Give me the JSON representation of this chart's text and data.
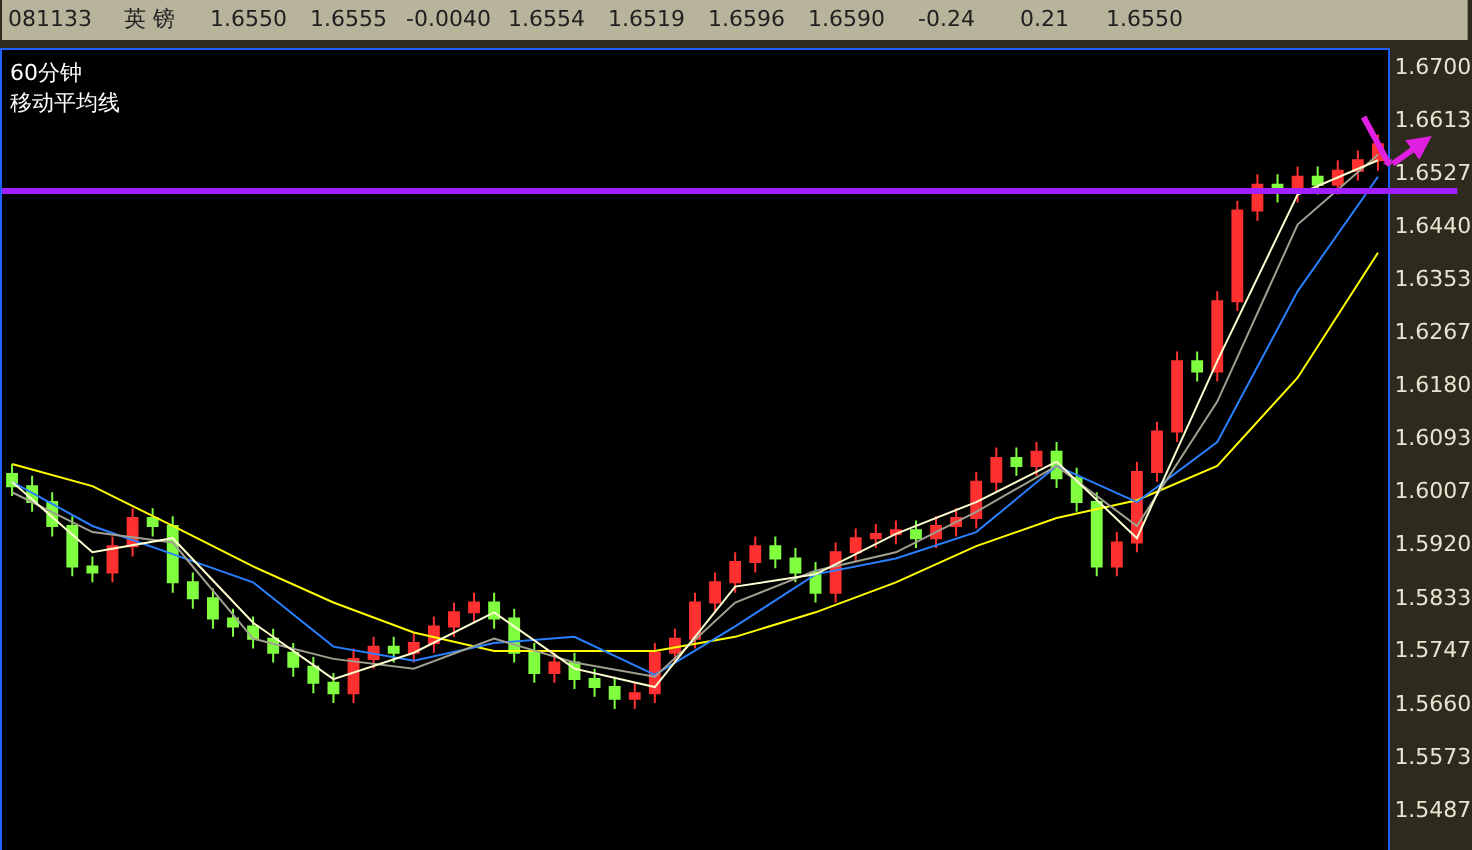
{
  "chart_data": {
    "type": "candlestick",
    "title": "60分钟",
    "subtitle": "移动平均线",
    "annotations": [
      "081133",
      "英 镑",
      "1.6550",
      "1.6555",
      "-0.0040",
      "1.6554",
      "1.6519",
      "1.6596",
      "1.6590",
      "-0.24",
      "0.21",
      "1.6550"
    ],
    "categories": [
      null,
      null,
      null,
      null,
      null,
      null,
      null,
      null,
      null,
      null,
      null,
      null,
      null,
      null,
      null,
      null,
      null,
      null,
      null,
      null,
      null,
      null,
      null,
      null,
      null,
      null,
      null,
      null,
      null,
      null,
      null,
      null,
      null,
      null,
      null,
      null,
      null,
      null,
      null,
      null,
      null,
      null,
      null,
      null,
      null,
      null,
      null,
      null,
      null,
      null,
      null,
      null,
      null,
      null,
      null,
      null,
      null,
      null,
      null,
      null,
      null,
      null,
      null,
      null,
      null,
      null,
      null,
      null,
      null
    ],
    "ohlc": [
      [
        1.6034,
        1.605,
        1.5998,
        1.6014
      ],
      [
        1.6014,
        1.6031,
        1.5972,
        1.5988
      ],
      [
        1.5988,
        1.6004,
        1.5932,
        1.5949
      ],
      [
        1.5949,
        1.5965,
        1.5867,
        1.5883
      ],
      [
        1.5883,
        1.5899,
        1.5857,
        1.5873
      ],
      [
        1.5873,
        1.5932,
        1.5857,
        1.5916
      ],
      [
        1.5916,
        1.5978,
        1.5899,
        1.5962
      ],
      [
        1.5962,
        1.5978,
        1.5932,
        1.5949
      ],
      [
        1.5949,
        1.5965,
        1.584,
        1.5857
      ],
      [
        1.5857,
        1.5873,
        1.5814,
        1.5831
      ],
      [
        1.5831,
        1.5847,
        1.5781,
        1.5798
      ],
      [
        1.5798,
        1.5814,
        1.5768,
        1.5785
      ],
      [
        1.5785,
        1.5801,
        1.5749,
        1.5765
      ],
      [
        1.5765,
        1.5781,
        1.5726,
        1.5742
      ],
      [
        1.5742,
        1.5758,
        1.5703,
        1.5719
      ],
      [
        1.5719,
        1.5735,
        1.5676,
        1.5693
      ],
      [
        1.5693,
        1.5709,
        1.566,
        1.5676
      ],
      [
        1.5676,
        1.5749,
        1.566,
        1.5732
      ],
      [
        1.5732,
        1.5768,
        1.5716,
        1.5752
      ],
      [
        1.5752,
        1.5768,
        1.5726,
        1.5742
      ],
      [
        1.5742,
        1.5775,
        1.5726,
        1.5758
      ],
      [
        1.5758,
        1.5801,
        1.5742,
        1.5785
      ],
      [
        1.5785,
        1.5824,
        1.5768,
        1.5808
      ],
      [
        1.5808,
        1.584,
        1.5791,
        1.5824
      ],
      [
        1.5824,
        1.584,
        1.5781,
        1.5798
      ],
      [
        1.5798,
        1.5814,
        1.5726,
        1.5742
      ],
      [
        1.5742,
        1.5758,
        1.5693,
        1.5709
      ],
      [
        1.5709,
        1.5742,
        1.5693,
        1.5726
      ],
      [
        1.5726,
        1.5742,
        1.5683,
        1.5699
      ],
      [
        1.5699,
        1.5716,
        1.567,
        1.5686
      ],
      [
        1.5686,
        1.5703,
        1.565,
        1.5667
      ],
      [
        1.5667,
        1.5693,
        1.565,
        1.5676
      ],
      [
        1.5676,
        1.5758,
        1.566,
        1.5742
      ],
      [
        1.5742,
        1.5781,
        1.5726,
        1.5765
      ],
      [
        1.5765,
        1.584,
        1.5749,
        1.5824
      ],
      [
        1.5824,
        1.5873,
        1.5808,
        1.5857
      ],
      [
        1.5857,
        1.5906,
        1.584,
        1.589
      ],
      [
        1.589,
        1.5932,
        1.5873,
        1.5916
      ],
      [
        1.5916,
        1.5932,
        1.588,
        1.5896
      ],
      [
        1.5896,
        1.5913,
        1.5857,
        1.5873
      ],
      [
        1.5873,
        1.589,
        1.5824,
        1.584
      ],
      [
        1.584,
        1.5922,
        1.5824,
        1.5906
      ],
      [
        1.5906,
        1.5945,
        1.589,
        1.5929
      ],
      [
        1.5929,
        1.5952,
        1.5913,
        1.5936
      ],
      [
        1.5936,
        1.5958,
        1.5919,
        1.5942
      ],
      [
        1.5942,
        1.5958,
        1.5913,
        1.5929
      ],
      [
        1.5929,
        1.5965,
        1.5913,
        1.5949
      ],
      [
        1.5949,
        1.5978,
        1.5932,
        1.5962
      ],
      [
        1.5962,
        1.6037,
        1.5945,
        1.6021
      ],
      [
        1.6021,
        1.6077,
        1.6004,
        1.606
      ],
      [
        1.606,
        1.6077,
        1.6031,
        1.6047
      ],
      [
        1.6047,
        1.6086,
        1.6031,
        1.607
      ],
      [
        1.607,
        1.6086,
        1.6011,
        1.6027
      ],
      [
        1.6027,
        1.6044,
        1.5972,
        1.5988
      ],
      [
        1.5988,
        1.6004,
        1.5867,
        1.5883
      ],
      [
        1.5883,
        1.5939,
        1.5867,
        1.5922
      ],
      [
        1.5922,
        1.6054,
        1.5906,
        1.6037
      ],
      [
        1.6037,
        1.6119,
        1.6021,
        1.6103
      ],
      [
        1.6103,
        1.6234,
        1.6086,
        1.6218
      ],
      [
        1.6218,
        1.6234,
        1.6185,
        1.6201
      ],
      [
        1.6201,
        1.6332,
        1.6185,
        1.6316
      ],
      [
        1.6316,
        1.648,
        1.63,
        1.6464
      ],
      [
        1.6464,
        1.6523,
        1.6447,
        1.6506
      ],
      [
        1.6506,
        1.6523,
        1.6477,
        1.6493
      ],
      [
        1.6493,
        1.6536,
        1.6477,
        1.6519
      ],
      [
        1.6519,
        1.6536,
        1.649,
        1.6506
      ],
      [
        1.6506,
        1.6546,
        1.649,
        1.6529
      ],
      [
        1.6529,
        1.6562,
        1.6513,
        1.6546
      ],
      [
        1.6546,
        1.6588,
        1.6529,
        1.6572
      ]
    ],
    "colors": [
      "#80ff40",
      "#80ff40",
      "#80ff40",
      "#80ff40",
      "#80ff40",
      "#ff3030",
      "#ff3030",
      "#80ff40",
      "#80ff40",
      "#80ff40",
      "#80ff40",
      "#80ff40",
      "#80ff40",
      "#80ff40",
      "#80ff40",
      "#80ff40",
      "#80ff40",
      "#ff3030",
      "#ff3030",
      "#80ff40",
      "#ff3030",
      "#ff3030",
      "#ff3030",
      "#ff3030",
      "#80ff40",
      "#80ff40",
      "#80ff40",
      "#ff3030",
      "#80ff40",
      "#80ff40",
      "#80ff40",
      "#ff3030",
      "#ff3030",
      "#ff3030",
      "#ff3030",
      "#ff3030",
      "#ff3030",
      "#ff3030",
      "#80ff40",
      "#80ff40",
      "#80ff40",
      "#ff3030",
      "#ff3030",
      "#ff3030",
      "#ff3030",
      "#80ff40",
      "#ff3030",
      "#ff3030",
      "#ff3030",
      "#ff3030",
      "#80ff40",
      "#ff3030",
      "#80ff40",
      "#80ff40",
      "#80ff40",
      "#ff3030",
      "#ff3030",
      "#ff3030",
      "#ff3030",
      "#80ff40",
      "#ff3030",
      "#ff3030",
      "#ff3030",
      "#80ff40",
      "#ff3030",
      "#80ff40",
      "#ff3030",
      "#ff3030",
      "#ff3030"
    ],
    "series": [
      {
        "type": "line",
        "color": "#ffff00",
        "values": [
          1.605,
          null,
          null,
          null,
          1.6014,
          null,
          null,
          null,
          1.5949,
          null,
          null,
          null,
          1.5883,
          null,
          null,
          null,
          1.5824,
          null,
          null,
          null,
          1.5775,
          null,
          null,
          null,
          1.5745,
          null,
          null,
          null,
          1.5745,
          null,
          null,
          null,
          1.5745,
          null,
          null,
          null,
          1.5768,
          null,
          null,
          null,
          1.5808,
          null,
          null,
          null,
          1.5857,
          null,
          null,
          null,
          1.5916,
          null,
          null,
          null,
          1.5962,
          null,
          null,
          null,
          1.5991,
          null,
          null,
          null,
          1.6047,
          null,
          null,
          null,
          1.6191,
          null,
          null,
          null,
          1.6395
        ]
      },
      {
        "type": "line",
        "color": "#2a7fff",
        "values": [
          1.6021,
          null,
          null,
          null,
          1.5949,
          null,
          null,
          null,
          1.5903,
          null,
          null,
          null,
          1.5857,
          null,
          null,
          null,
          1.5752,
          null,
          null,
          null,
          1.5729,
          null,
          null,
          null,
          1.5758,
          null,
          null,
          null,
          1.5768,
          null,
          null,
          null,
          1.5706,
          null,
          null,
          null,
          1.5785,
          null,
          null,
          null,
          1.587,
          null,
          null,
          null,
          1.5896,
          null,
          null,
          null,
          1.5939,
          null,
          null,
          null,
          1.6047,
          null,
          null,
          null,
          1.5988,
          null,
          null,
          null,
          1.6086,
          null,
          null,
          null,
          1.6332,
          null,
          null,
          null,
          1.6519
        ]
      },
      {
        "type": "line",
        "color": "#a0a090",
        "values": [
          1.6004,
          null,
          null,
          null,
          1.5939,
          null,
          null,
          null,
          1.5922,
          null,
          null,
          null,
          1.5765,
          null,
          null,
          null,
          1.5732,
          null,
          null,
          null,
          1.5716,
          null,
          null,
          null,
          1.5765,
          null,
          null,
          null,
          1.5726,
          null,
          null,
          null,
          1.5703,
          null,
          null,
          null,
          1.5824,
          null,
          null,
          null,
          1.5876,
          null,
          null,
          null,
          1.5906,
          null,
          null,
          null,
          1.5972,
          null,
          null,
          null,
          1.6047,
          null,
          null,
          null,
          1.5949,
          null,
          null,
          null,
          1.6152,
          null,
          null,
          null,
          1.6441,
          null,
          null,
          null,
          1.6555
        ]
      },
      {
        "type": "line",
        "color": "#ffffd0",
        "values": [
          1.6021,
          null,
          null,
          null,
          1.5906,
          null,
          null,
          null,
          1.5929,
          null,
          null,
          null,
          1.5791,
          null,
          null,
          null,
          1.5699,
          null,
          null,
          null,
          1.5742,
          null,
          null,
          null,
          1.5808,
          null,
          null,
          null,
          1.5716,
          null,
          null,
          null,
          1.5686,
          null,
          null,
          null,
          1.585,
          null,
          null,
          null,
          1.587,
          null,
          null,
          null,
          1.5936,
          null,
          null,
          null,
          1.5988,
          null,
          null,
          null,
          1.6054,
          null,
          null,
          null,
          1.5929,
          null,
          null,
          null,
          1.6218,
          null,
          null,
          null,
          1.649,
          null,
          null,
          null,
          1.6546
        ]
      }
    ],
    "ylim": [
      1.542,
      1.6726
    ],
    "yticks": [
      {
        "value": 1.67,
        "label": "1.6700"
      },
      {
        "value": 1.6613,
        "label": "1.6613"
      },
      {
        "value": 1.6527,
        "label": "1.6527"
      },
      {
        "value": 1.644,
        "label": "1.6440"
      },
      {
        "value": 1.6353,
        "label": "1.6353"
      },
      {
        "value": 1.6267,
        "label": "1.6267"
      },
      {
        "value": 1.618,
        "label": "1.6180"
      },
      {
        "value": 1.6093,
        "label": "1.6093"
      },
      {
        "value": 1.6007,
        "label": "1.6007"
      },
      {
        "value": 1.592,
        "label": "1.5920"
      },
      {
        "value": 1.5833,
        "label": "1.5833"
      },
      {
        "value": 1.5747,
        "label": "1.5747"
      },
      {
        "value": 1.566,
        "label": "1.5660"
      },
      {
        "value": 1.5573,
        "label": "1.5573"
      },
      {
        "value": 1.5487,
        "label": "1.5487"
      }
    ],
    "ref_lines": [
      {
        "axis": "y",
        "value": 1.6496,
        "color": "#a020ff"
      }
    ],
    "tick_labels": "y"
  }
}
